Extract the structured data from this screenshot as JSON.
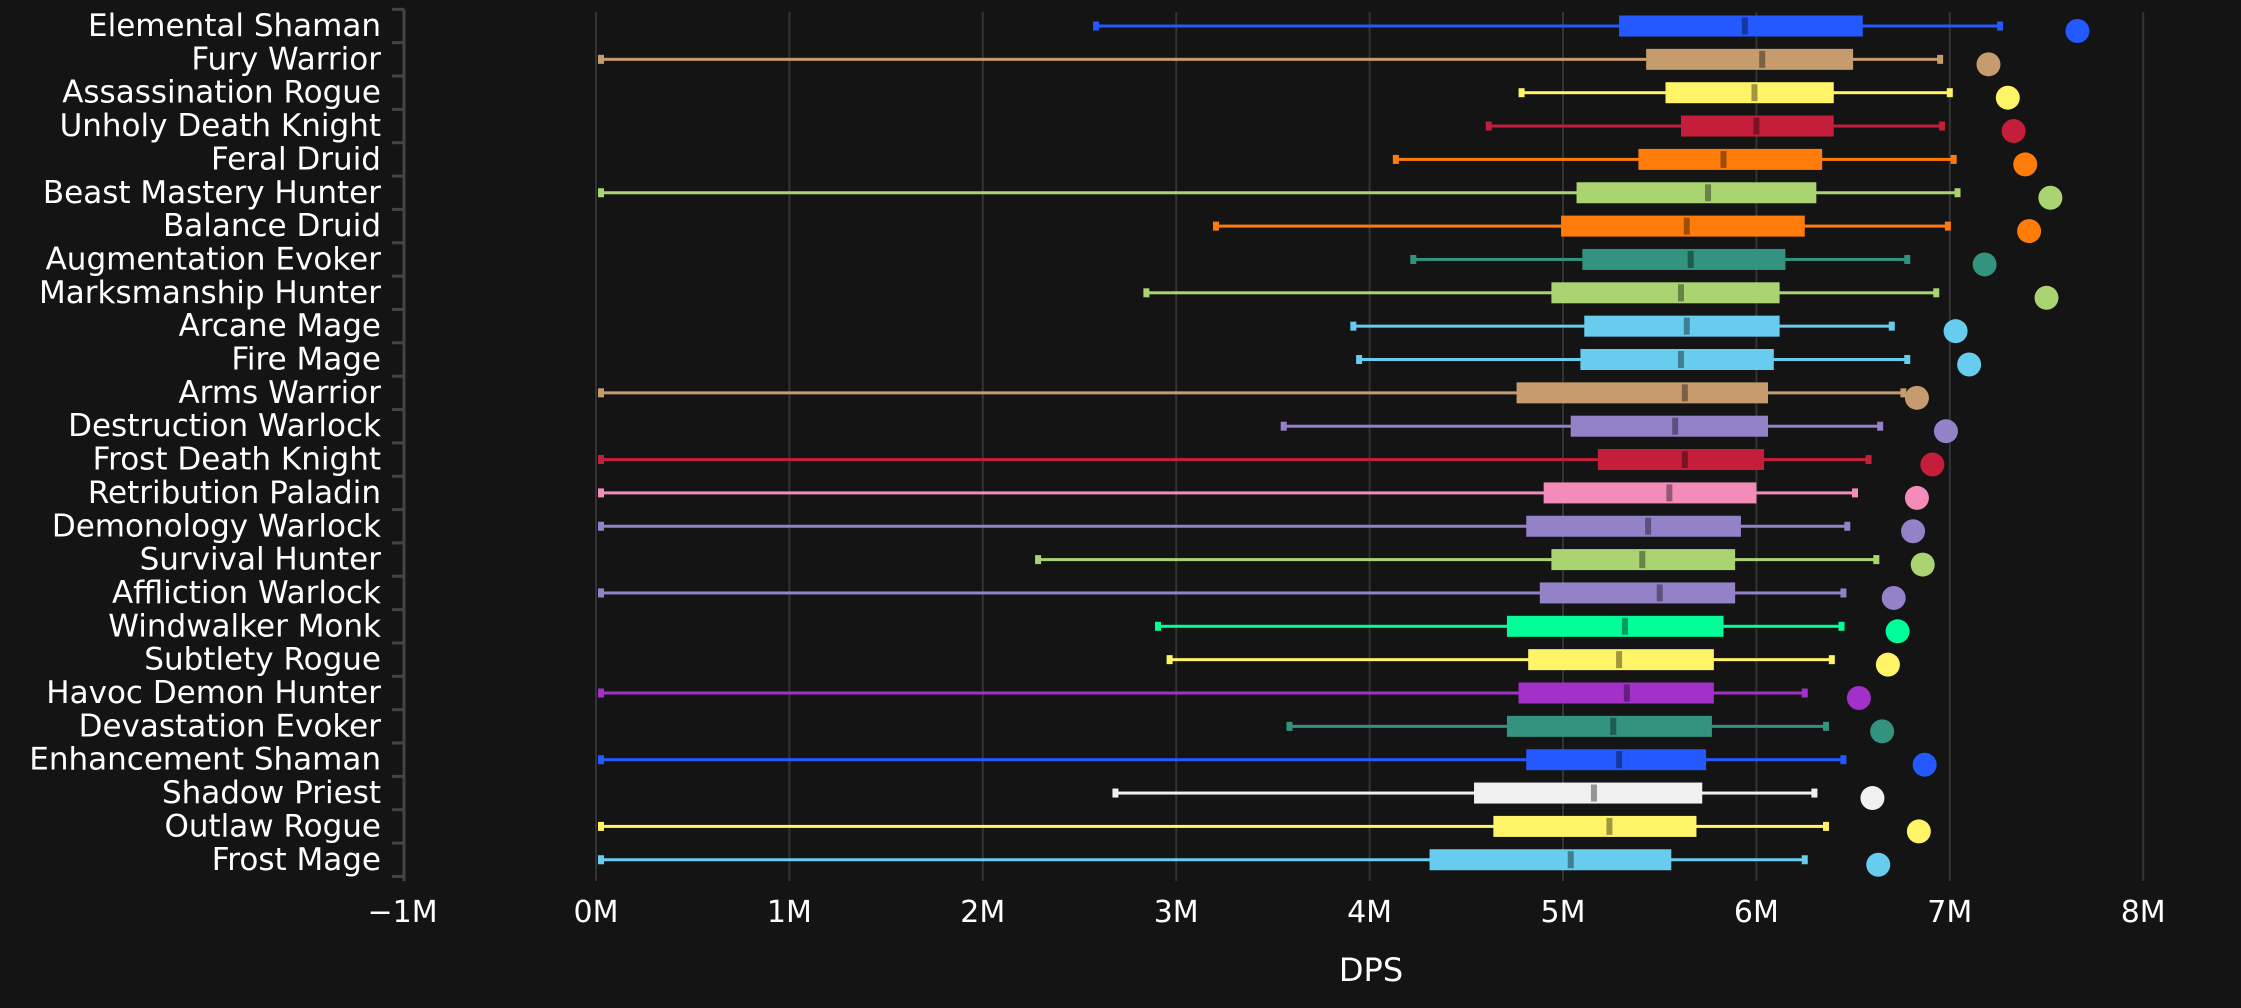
{
  "chart_data": {
    "type": "boxplot",
    "title": "",
    "xlabel": "DPS",
    "ylabel": "",
    "xlim": [
      -1000000,
      8000000
    ],
    "x_ticks": [
      -1000000,
      0,
      1000000,
      2000000,
      3000000,
      4000000,
      5000000,
      6000000,
      7000000,
      8000000
    ],
    "x_tick_labels": [
      "−1M",
      "0M",
      "1M",
      "2M",
      "3M",
      "4M",
      "5M",
      "6M",
      "7M",
      "8M"
    ],
    "grid": "vertical",
    "legend": "none",
    "units": "DPS",
    "series": [
      {
        "name": "Elemental Shaman",
        "color": "#2459FF",
        "min": 2560000,
        "q1": 5290000,
        "median": 5940000,
        "q3": 6550000,
        "max": 7260000,
        "top": 7660000
      },
      {
        "name": "Fury Warrior",
        "color": "#C69B6D",
        "min": 0,
        "q1": 5430000,
        "median": 6030000,
        "q3": 6500000,
        "max": 6950000,
        "top": 7200000
      },
      {
        "name": "Assassination Rogue",
        "color": "#FFF468",
        "min": 4760000,
        "q1": 5530000,
        "median": 5990000,
        "q3": 6400000,
        "max": 7000000,
        "top": 7300000
      },
      {
        "name": "Unholy Death Knight",
        "color": "#C41E3A",
        "min": 4590000,
        "q1": 5610000,
        "median": 6000000,
        "q3": 6400000,
        "max": 6960000,
        "top": 7330000
      },
      {
        "name": "Feral Druid",
        "color": "#FF7C0A",
        "min": 4110000,
        "q1": 5390000,
        "median": 5830000,
        "q3": 6340000,
        "max": 7020000,
        "top": 7390000
      },
      {
        "name": "Beast Mastery Hunter",
        "color": "#AAD372",
        "min": 0,
        "q1": 5070000,
        "median": 5750000,
        "q3": 6310000,
        "max": 7040000,
        "top": 7520000
      },
      {
        "name": "Balance Druid",
        "color": "#FF7C0A",
        "min": 3180000,
        "q1": 4990000,
        "median": 5640000,
        "q3": 6250000,
        "max": 6990000,
        "top": 7410000
      },
      {
        "name": "Augmentation Evoker",
        "color": "#33937F",
        "min": 4200000,
        "q1": 5100000,
        "median": 5660000,
        "q3": 6150000,
        "max": 6780000,
        "top": 7180000
      },
      {
        "name": "Marksmanship Hunter",
        "color": "#AAD372",
        "min": 2820000,
        "q1": 4940000,
        "median": 5610000,
        "q3": 6120000,
        "max": 6930000,
        "top": 7500000
      },
      {
        "name": "Arcane Mage",
        "color": "#68CCEF",
        "min": 3890000,
        "q1": 5110000,
        "median": 5640000,
        "q3": 6120000,
        "max": 6700000,
        "top": 7030000
      },
      {
        "name": "Fire Mage",
        "color": "#68CCEF",
        "min": 3920000,
        "q1": 5090000,
        "median": 5610000,
        "q3": 6090000,
        "max": 6780000,
        "top": 7100000
      },
      {
        "name": "Arms Warrior",
        "color": "#C69B6D",
        "min": 0,
        "q1": 4760000,
        "median": 5630000,
        "q3": 6060000,
        "max": 6760000,
        "top": 6830000
      },
      {
        "name": "Destruction Warlock",
        "color": "#9482C9",
        "min": 3530000,
        "q1": 5040000,
        "median": 5580000,
        "q3": 6060000,
        "max": 6640000,
        "top": 6980000
      },
      {
        "name": "Frost Death Knight",
        "color": "#C41E3A",
        "min": 0,
        "q1": 5180000,
        "median": 5630000,
        "q3": 6040000,
        "max": 6580000,
        "top": 6910000
      },
      {
        "name": "Retribution Paladin",
        "color": "#F48CBA",
        "min": 0,
        "q1": 4900000,
        "median": 5550000,
        "q3": 6000000,
        "max": 6510000,
        "top": 6830000
      },
      {
        "name": "Demonology Warlock",
        "color": "#9482C9",
        "min": 0,
        "q1": 4810000,
        "median": 5440000,
        "q3": 5920000,
        "max": 6470000,
        "top": 6810000
      },
      {
        "name": "Survival Hunter",
        "color": "#AAD372",
        "min": 2260000,
        "q1": 4940000,
        "median": 5410000,
        "q3": 5890000,
        "max": 6620000,
        "top": 6860000
      },
      {
        "name": "Affliction Warlock",
        "color": "#9482C9",
        "min": 0,
        "q1": 4880000,
        "median": 5500000,
        "q3": 5890000,
        "max": 6450000,
        "top": 6710000
      },
      {
        "name": "Windwalker Monk",
        "color": "#00FF98",
        "min": 2880000,
        "q1": 4710000,
        "median": 5320000,
        "q3": 5830000,
        "max": 6440000,
        "top": 6730000
      },
      {
        "name": "Subtlety Rogue",
        "color": "#FFF468",
        "min": 2940000,
        "q1": 4820000,
        "median": 5290000,
        "q3": 5780000,
        "max": 6390000,
        "top": 6680000
      },
      {
        "name": "Havoc Demon Hunter",
        "color": "#A330C9",
        "min": 0,
        "q1": 4770000,
        "median": 5330000,
        "q3": 5780000,
        "max": 6250000,
        "top": 6530000
      },
      {
        "name": "Devastation Evoker",
        "color": "#33937F",
        "min": 3560000,
        "q1": 4710000,
        "median": 5260000,
        "q3": 5770000,
        "max": 6360000,
        "top": 6650000
      },
      {
        "name": "Enhancement Shaman",
        "color": "#2459FF",
        "min": 0,
        "q1": 4810000,
        "median": 5290000,
        "q3": 5740000,
        "max": 6450000,
        "top": 6870000
      },
      {
        "name": "Shadow Priest",
        "color": "#F0F0F0",
        "min": 2660000,
        "q1": 4540000,
        "median": 5160000,
        "q3": 5720000,
        "max": 6300000,
        "top": 6600000
      },
      {
        "name": "Outlaw Rogue",
        "color": "#FFF468",
        "min": 0,
        "q1": 4640000,
        "median": 5240000,
        "q3": 5690000,
        "max": 6360000,
        "top": 6840000
      },
      {
        "name": "Frost Mage",
        "color": "#68CCEF",
        "min": 0,
        "q1": 4310000,
        "median": 5040000,
        "q3": 5560000,
        "max": 6250000,
        "top": 6630000
      }
    ],
    "colors": {
      "background": "#141414",
      "grid": "#333333",
      "axis": "#444444",
      "text": "#FFFFFF"
    }
  }
}
